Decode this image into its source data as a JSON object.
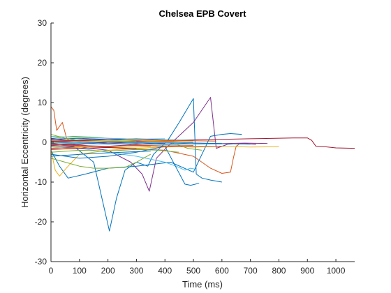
{
  "chart_data": {
    "type": "line",
    "title": "Chelsea EPB Covert",
    "xlabel": "Time (ms)",
    "ylabel": "Horizontal Eccentricity (degrees)",
    "xlim": [
      0,
      1066
    ],
    "ylim": [
      -30,
      30
    ],
    "xticks": [
      "0",
      "100",
      "200",
      "300",
      "400",
      "500",
      "600",
      "700",
      "800",
      "900",
      "1000"
    ],
    "yticks": [
      "-30",
      "-20",
      "-10",
      "0",
      "10",
      "20",
      "30"
    ],
    "grid": false,
    "legend": "none",
    "series": [
      {
        "color": "#A2142F",
        "x": [
          0,
          100,
          300,
          500,
          700,
          850,
          900,
          915,
          930,
          960,
          1000,
          1066
        ],
        "y": [
          -0.5,
          -0.3,
          0.3,
          0.6,
          0.9,
          1.1,
          1.1,
          0.5,
          -1.0,
          -1.1,
          -1.4,
          -1.5
        ]
      },
      {
        "color": "#0072BD",
        "x": [
          0,
          80,
          150,
          205,
          230,
          260,
          300,
          340,
          360,
          410,
          450,
          500,
          510,
          530,
          560,
          600
        ],
        "y": [
          -0.5,
          -1.0,
          -5.0,
          -22.3,
          -14.0,
          -7.0,
          -5.0,
          -6.0,
          -3.0,
          0.5,
          5.0,
          11.0,
          -8.0,
          -9.0,
          -9.5,
          -10.0
        ]
      },
      {
        "color": "#7E2F8E",
        "x": [
          0,
          100,
          200,
          280,
          320,
          345,
          370,
          410,
          500,
          560,
          580,
          620,
          680,
          720
        ],
        "y": [
          -1.0,
          -1.2,
          -2.0,
          -5.0,
          -8.0,
          -12.3,
          -4.0,
          -1.0,
          5.0,
          11.3,
          -1.5,
          -0.5,
          -0.3,
          -0.5
        ]
      },
      {
        "color": "#D95319",
        "x": [
          0,
          10,
          20,
          40,
          55,
          80,
          150,
          250,
          400,
          500,
          560,
          600,
          630,
          640,
          650,
          660
        ],
        "y": [
          9.0,
          8.0,
          3.0,
          5.0,
          1.0,
          -0.5,
          -1.0,
          -1.5,
          -2.0,
          -3.5,
          -6.5,
          -7.8,
          -7.5,
          -4.0,
          -1.0,
          -0.5
        ]
      },
      {
        "color": "#0072BD",
        "x": [
          0,
          30,
          60,
          120,
          200,
          300,
          420,
          500,
          560,
          600,
          630,
          670
        ],
        "y": [
          -2.0,
          -6.0,
          -9.0,
          -8.0,
          -6.5,
          -6.0,
          -5.0,
          -7.5,
          1.5,
          2.0,
          2.2,
          2.0
        ]
      },
      {
        "color": "#4DBEEE",
        "x": [
          0,
          100,
          200,
          300,
          400,
          440,
          470,
          490,
          510
        ],
        "y": [
          -1.0,
          -1.5,
          -2.5,
          -3.5,
          -5.0,
          -6.0,
          -7.0,
          -6.5,
          -6.8
        ]
      },
      {
        "color": "#EDB120",
        "x": [
          0,
          15,
          30,
          60,
          100,
          200,
          300,
          400,
          500,
          600,
          700,
          800
        ],
        "y": [
          -2.0,
          -7.0,
          -8.5,
          -6.0,
          -3.0,
          -2.0,
          -1.5,
          -1.2,
          -1.0,
          -1.0,
          -1.2,
          -1.1
        ]
      },
      {
        "color": "#77AC30",
        "x": [
          0,
          80,
          150,
          200,
          300,
          400,
          480,
          530
        ],
        "y": [
          1.0,
          1.5,
          1.3,
          1.0,
          0.8,
          0.5,
          -1.5,
          -2.0
        ]
      },
      {
        "color": "#0072BD",
        "x": [
          0,
          100,
          200,
          300,
          400,
          470,
          490,
          520
        ],
        "y": [
          -3.0,
          -4.0,
          -3.5,
          -2.5,
          -1.0,
          -10.5,
          -10.8,
          -10.3
        ]
      },
      {
        "color": "#77AC30",
        "x": [
          0,
          50,
          100,
          150,
          200,
          260,
          300,
          350
        ],
        "y": [
          -4.0,
          -5.0,
          -6.0,
          -6.5,
          -6.5,
          -6.3,
          -5.0,
          -3.0
        ]
      },
      {
        "color": "#7E2F8E",
        "x": [
          0,
          100,
          200,
          300,
          400,
          500,
          600,
          680,
          760
        ],
        "y": [
          -0.8,
          -0.5,
          0.0,
          0.2,
          0.1,
          -0.2,
          -0.3,
          -0.2,
          -0.3
        ]
      },
      {
        "color": "#EDB120",
        "x": [
          0,
          100,
          200,
          300,
          400,
          500
        ],
        "y": [
          0.5,
          0.3,
          0.6,
          0.4,
          0.2,
          0.0
        ]
      },
      {
        "color": "#D95319",
        "x": [
          0,
          100,
          200,
          300,
          400,
          500,
          600
        ],
        "y": [
          -1.5,
          -1.2,
          -1.0,
          -0.8,
          -1.0,
          -1.2,
          -1.0
        ]
      },
      {
        "color": "#A2142F",
        "x": [
          0,
          60,
          150,
          250,
          350,
          420
        ],
        "y": [
          1.0,
          0.5,
          0.8,
          0.6,
          0.7,
          0.5
        ]
      },
      {
        "color": "#4DBEEE",
        "x": [
          0,
          100,
          200,
          300,
          400,
          500,
          600,
          700
        ],
        "y": [
          0.0,
          -0.3,
          -0.5,
          -0.4,
          -0.6,
          -0.5,
          -0.4,
          -0.5
        ]
      },
      {
        "color": "#0072BD",
        "x": [
          0,
          100,
          200,
          300,
          400,
          500
        ],
        "y": [
          0.8,
          1.0,
          0.7,
          0.9,
          0.6,
          0.5
        ]
      },
      {
        "color": "#77AC30",
        "x": [
          0,
          100,
          200,
          300,
          380,
          450
        ],
        "y": [
          -2.5,
          -2.0,
          -2.2,
          -1.8,
          -2.0,
          -2.5
        ]
      },
      {
        "color": "#D95319",
        "x": [
          0,
          100,
          200,
          300,
          400,
          500,
          580
        ],
        "y": [
          0.2,
          0.5,
          0.3,
          0.8,
          0.5,
          0.4,
          0.3
        ]
      },
      {
        "color": "#7E2F8E",
        "x": [
          0,
          100,
          200,
          300,
          400
        ],
        "y": [
          -0.3,
          -0.8,
          -1.0,
          -0.5,
          -0.2
        ]
      },
      {
        "color": "#EDB120",
        "x": [
          0,
          60,
          150,
          250,
          350
        ],
        "y": [
          -1.2,
          -1.5,
          -1.0,
          -1.3,
          -1.1
        ]
      },
      {
        "color": "#A2142F",
        "x": [
          0,
          100,
          200,
          300,
          400,
          500
        ],
        "y": [
          0.3,
          0.1,
          0.0,
          -0.2,
          0.1,
          0.0
        ]
      },
      {
        "color": "#4DBEEE",
        "x": [
          0,
          100,
          200,
          300,
          400
        ],
        "y": [
          1.5,
          1.2,
          1.0,
          0.8,
          0.9
        ]
      },
      {
        "color": "#0072BD",
        "x": [
          0,
          100,
          200,
          300,
          400,
          500,
          600
        ],
        "y": [
          -0.2,
          0.0,
          -0.3,
          -0.1,
          -0.4,
          -0.2,
          -0.3
        ]
      },
      {
        "color": "#77AC30",
        "x": [
          0,
          50,
          100,
          200,
          300
        ],
        "y": [
          2.0,
          1.0,
          0.5,
          0.3,
          0.2
        ]
      },
      {
        "color": "#D95319",
        "x": [
          0,
          100,
          200,
          300,
          400,
          500
        ],
        "y": [
          -0.6,
          -0.9,
          -1.1,
          -0.7,
          -0.9,
          -0.8
        ]
      },
      {
        "color": "#7E2F8E",
        "x": [
          0,
          100,
          200,
          300,
          360
        ],
        "y": [
          0.6,
          0.4,
          0.7,
          0.5,
          0.6
        ]
      },
      {
        "color": "#EDB120",
        "x": [
          0,
          100,
          200,
          300,
          400,
          500
        ],
        "y": [
          -0.1,
          0.2,
          0.4,
          0.6,
          0.3,
          0.1
        ]
      },
      {
        "color": "#A2142F",
        "x": [
          0,
          100,
          200,
          300
        ],
        "y": [
          -1.8,
          -1.5,
          -1.3,
          -1.6
        ]
      },
      {
        "color": "#4DBEEE",
        "x": [
          0,
          100,
          200,
          300,
          400,
          500
        ],
        "y": [
          0.1,
          -0.1,
          0.2,
          0.0,
          -0.1,
          0.0
        ]
      },
      {
        "color": "#0072BD",
        "x": [
          0,
          150,
          250,
          350
        ],
        "y": [
          -3.5,
          -2.8,
          -2.5,
          -2.2
        ]
      }
    ]
  }
}
